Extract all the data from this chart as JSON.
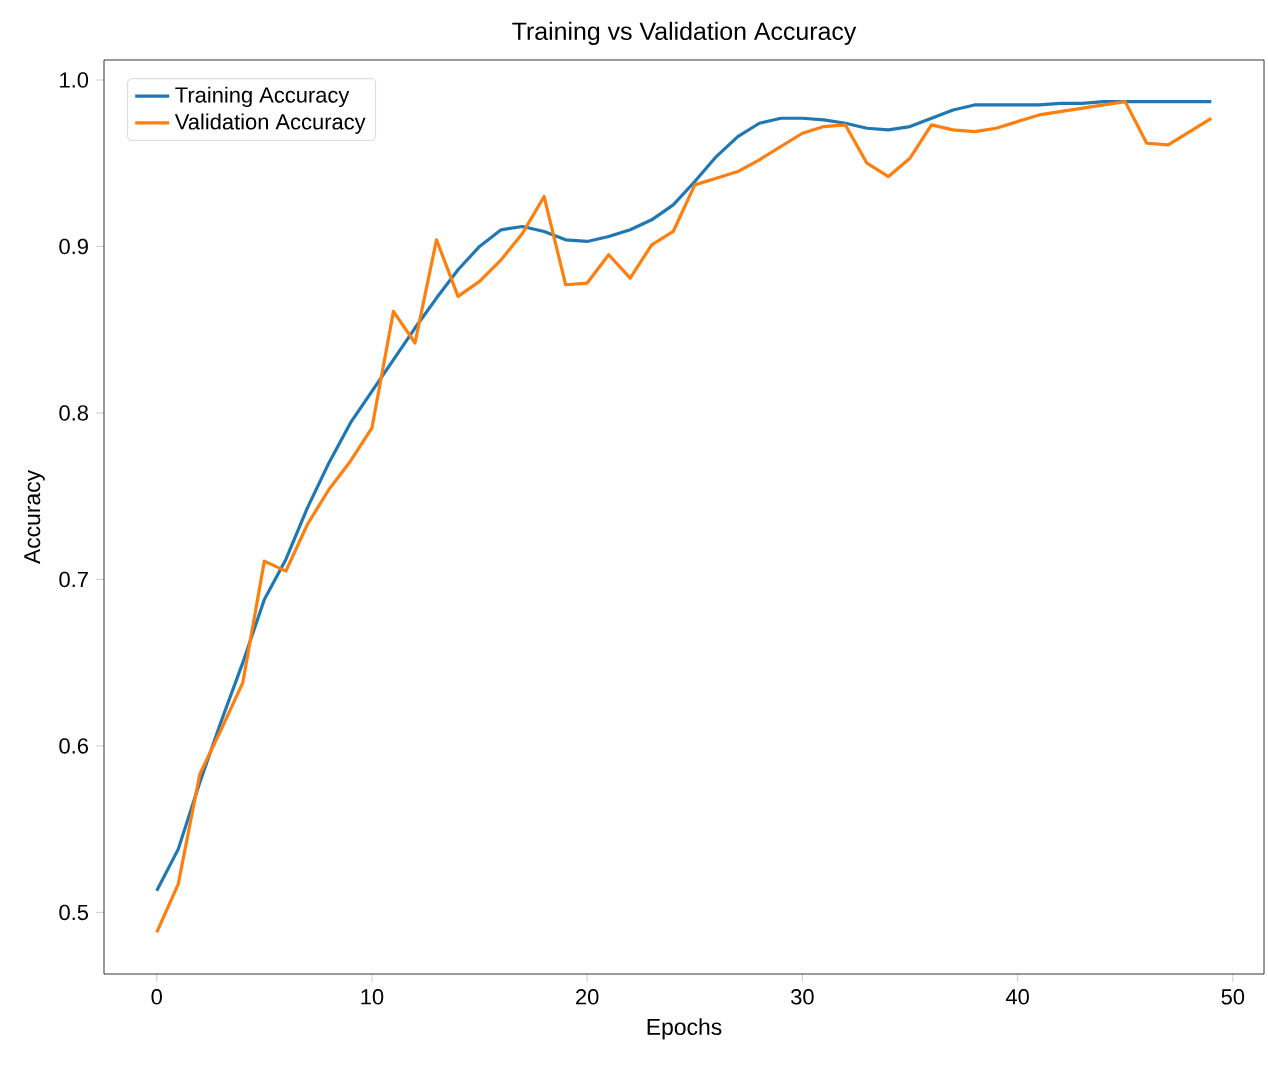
{
  "chart_data": {
    "type": "line",
    "title": "Training vs Validation Accuracy",
    "xlabel": "Epochs",
    "ylabel": "Accuracy",
    "x": [
      0,
      1,
      2,
      3,
      4,
      5,
      6,
      7,
      8,
      9,
      10,
      11,
      12,
      13,
      14,
      15,
      16,
      17,
      18,
      19,
      20,
      21,
      22,
      23,
      24,
      25,
      26,
      27,
      28,
      29,
      30,
      31,
      32,
      33,
      34,
      35,
      36,
      37,
      38,
      39,
      40,
      41,
      42,
      43,
      44,
      45,
      46,
      47,
      48,
      49
    ],
    "series": [
      {
        "name": "Training Accuracy",
        "color": "#1f77b4",
        "values": [
          0.513,
          0.538,
          0.578,
          0.615,
          0.65,
          0.688,
          0.712,
          0.743,
          0.77,
          0.794,
          0.813,
          0.832,
          0.851,
          0.869,
          0.886,
          0.9,
          0.91,
          0.912,
          0.909,
          0.904,
          0.903,
          0.906,
          0.91,
          0.916,
          0.925,
          0.939,
          0.954,
          0.966,
          0.974,
          0.977,
          0.977,
          0.976,
          0.974,
          0.971,
          0.97,
          0.972,
          0.977,
          0.982,
          0.985,
          0.985,
          0.985,
          0.985,
          0.986,
          0.986,
          0.987,
          0.987,
          0.987,
          0.987,
          0.987,
          0.987
        ]
      },
      {
        "name": "Validation Accuracy",
        "color": "#ff7f0e",
        "values": [
          0.488,
          0.517,
          0.583,
          0.61,
          0.638,
          0.711,
          0.705,
          0.733,
          0.754,
          0.771,
          0.791,
          0.861,
          0.842,
          0.904,
          0.87,
          0.879,
          0.892,
          0.908,
          0.93,
          0.877,
          0.878,
          0.895,
          0.881,
          0.901,
          0.909,
          0.937,
          0.941,
          0.945,
          0.952,
          0.96,
          0.968,
          0.972,
          0.973,
          0.95,
          0.942,
          0.953,
          0.973,
          0.97,
          0.969,
          0.971,
          0.975,
          0.979,
          0.981,
          0.983,
          0.985,
          0.987,
          0.962,
          0.961,
          0.969,
          0.977
        ]
      }
    ],
    "xlim": [
      -2.45,
      51.45
    ],
    "ylim": [
      0.463,
      1.012
    ],
    "xticks": [
      0,
      10,
      20,
      30,
      40,
      50
    ],
    "yticks": [
      {
        "value": 0.5,
        "label": "0.5"
      },
      {
        "value": 0.6,
        "label": "0.6"
      },
      {
        "value": 0.7,
        "label": "0.7"
      },
      {
        "value": 0.8,
        "label": "0.8"
      },
      {
        "value": 0.9,
        "label": "0.9"
      },
      {
        "value": 1.0,
        "label": "1.0"
      }
    ],
    "grid": false,
    "legend": "top left",
    "marker": "none",
    "line_style": "solid"
  }
}
